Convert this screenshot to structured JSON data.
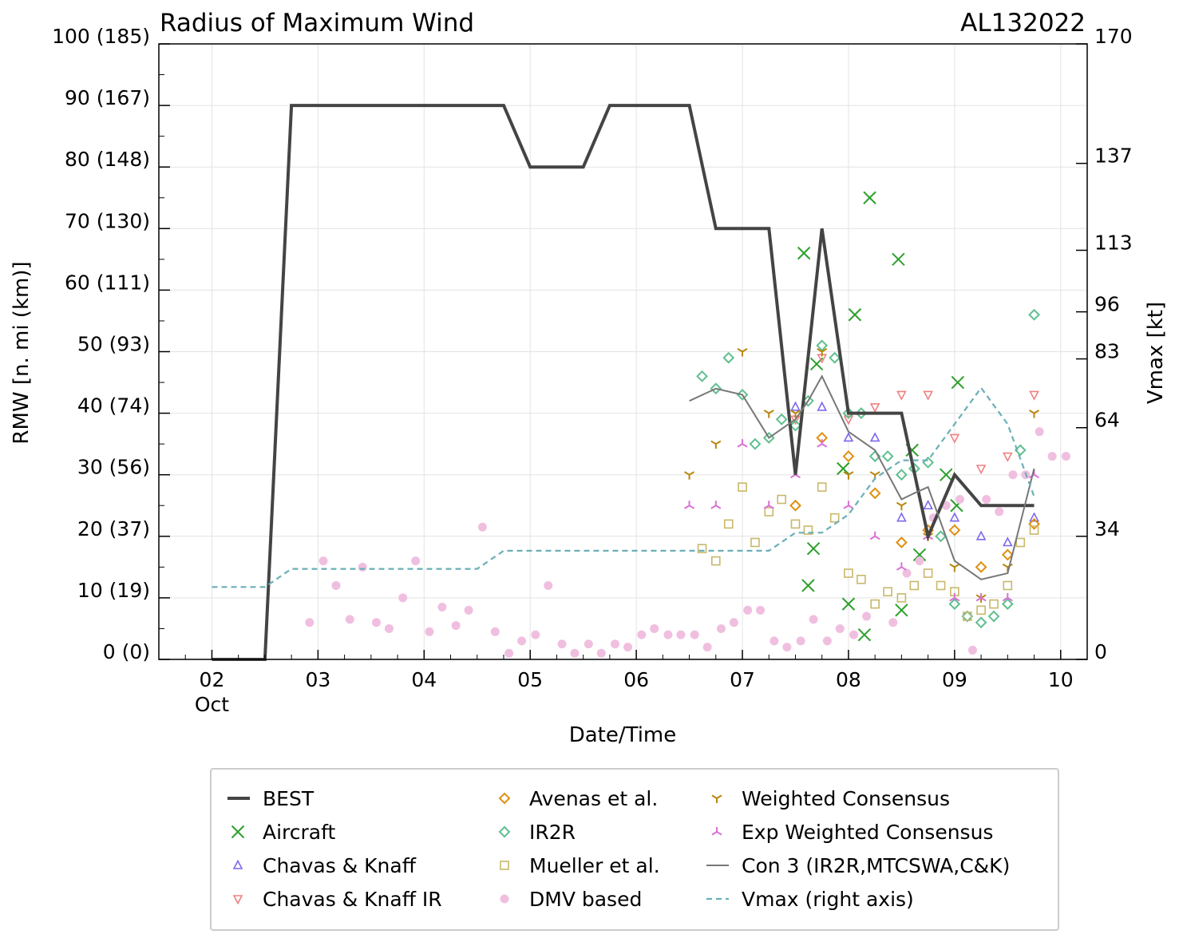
{
  "chart_data": {
    "type": "line",
    "title": "Radius of Maximum Wind",
    "storm_id": "AL132022",
    "xlabel": "Date/Time",
    "ylabel": "RMW [n. mi (km)]",
    "y2label": "Vmax [kt]",
    "xlim": [
      1.5,
      10.25
    ],
    "ylim": [
      0,
      100
    ],
    "y2lim": [
      0,
      170
    ],
    "x_ticks": [
      {
        "x": 2,
        "label": "02"
      },
      {
        "x": 3,
        "label": "03"
      },
      {
        "x": 4,
        "label": "04"
      },
      {
        "x": 5,
        "label": "05"
      },
      {
        "x": 6,
        "label": "06"
      },
      {
        "x": 7,
        "label": "07"
      },
      {
        "x": 8,
        "label": "08"
      },
      {
        "x": 9,
        "label": "09"
      },
      {
        "x": 10,
        "label": "10"
      }
    ],
    "x_month_label": "Oct",
    "y_ticks": [
      {
        "y": 0,
        "label": "0 (0)"
      },
      {
        "y": 10,
        "label": "10 (19)"
      },
      {
        "y": 20,
        "label": "20 (37)"
      },
      {
        "y": 30,
        "label": "30 (56)"
      },
      {
        "y": 40,
        "label": "40 (74)"
      },
      {
        "y": 50,
        "label": "50 (93)"
      },
      {
        "y": 60,
        "label": "60 (111)"
      },
      {
        "y": 70,
        "label": "70 (130)"
      },
      {
        "y": 80,
        "label": "80 (148)"
      },
      {
        "y": 90,
        "label": "90 (167)"
      },
      {
        "y": 100,
        "label": "100 (185)"
      }
    ],
    "y2_ticks": [
      {
        "v": 0,
        "label": "0"
      },
      {
        "v": 34,
        "label": "34"
      },
      {
        "v": 64,
        "label": "64"
      },
      {
        "v": 83,
        "label": "83"
      },
      {
        "v": 96,
        "label": "96"
      },
      {
        "v": 113,
        "label": "113"
      },
      {
        "v": 137,
        "label": "137"
      },
      {
        "v": 170,
        "label": "170"
      }
    ],
    "series": [
      {
        "name": "BEST",
        "kind": "line",
        "color": "#444444",
        "points": [
          [
            2,
            0
          ],
          [
            2.5,
            0
          ],
          [
            2.75,
            90
          ],
          [
            4.75,
            90
          ],
          [
            5,
            80
          ],
          [
            5.5,
            80
          ],
          [
            5.75,
            90
          ],
          [
            6.5,
            90
          ],
          [
            6.75,
            70
          ],
          [
            7.25,
            70
          ],
          [
            7.5,
            30
          ],
          [
            7.75,
            70
          ],
          [
            8,
            40
          ],
          [
            8.5,
            40
          ],
          [
            8.75,
            20
          ],
          [
            9,
            30
          ],
          [
            9.25,
            25
          ],
          [
            9.75,
            25
          ]
        ]
      },
      {
        "name": "Aircraft",
        "kind": "marker",
        "marker": "x",
        "color": "#2ca02c",
        "points": [
          [
            7.58,
            66
          ],
          [
            7.67,
            18
          ],
          [
            7.62,
            12
          ],
          [
            7.7,
            48
          ],
          [
            7.95,
            31
          ],
          [
            8.0,
            9
          ],
          [
            8.06,
            56
          ],
          [
            8.15,
            4
          ],
          [
            8.2,
            75
          ],
          [
            8.47,
            65
          ],
          [
            8.5,
            8
          ],
          [
            8.6,
            34
          ],
          [
            8.67,
            17
          ],
          [
            8.92,
            30
          ],
          [
            9.02,
            25
          ],
          [
            9.03,
            45
          ]
        ]
      },
      {
        "name": "Chavas & Knaff",
        "kind": "marker",
        "marker": "tri_up",
        "color": "#7b68ee",
        "points": [
          [
            7.5,
            41
          ],
          [
            7.75,
            41
          ],
          [
            8.0,
            36
          ],
          [
            8.25,
            36
          ],
          [
            8.5,
            23
          ],
          [
            8.75,
            25
          ],
          [
            9.0,
            23
          ],
          [
            9.25,
            20
          ],
          [
            9.5,
            19
          ],
          [
            9.75,
            23
          ]
        ]
      },
      {
        "name": "Chavas & Knaff IR",
        "kind": "marker",
        "marker": "tri_down",
        "color": "#f08080",
        "points": [
          [
            7.5,
            39
          ],
          [
            7.75,
            49
          ],
          [
            8.0,
            39
          ],
          [
            8.25,
            41
          ],
          [
            8.5,
            43
          ],
          [
            8.75,
            43
          ],
          [
            9.0,
            36
          ],
          [
            9.25,
            31
          ],
          [
            9.5,
            33
          ],
          [
            9.75,
            43
          ]
        ]
      },
      {
        "name": "Avenas et al.",
        "kind": "marker",
        "marker": "diamond",
        "color": "#e08f10",
        "points": [
          [
            7.5,
            25
          ],
          [
            7.75,
            36
          ],
          [
            8.0,
            33
          ],
          [
            8.25,
            27
          ],
          [
            8.5,
            19
          ],
          [
            8.75,
            21
          ],
          [
            9.0,
            21
          ],
          [
            9.25,
            15
          ],
          [
            9.5,
            17
          ],
          [
            9.75,
            22
          ]
        ]
      },
      {
        "name": "IR2R",
        "kind": "marker",
        "marker": "diamond",
        "color": "#5fbf8f",
        "points": [
          [
            6.62,
            46
          ],
          [
            6.75,
            44
          ],
          [
            6.87,
            49
          ],
          [
            7.0,
            43
          ],
          [
            7.12,
            35
          ],
          [
            7.25,
            36
          ],
          [
            7.37,
            39
          ],
          [
            7.5,
            38
          ],
          [
            7.62,
            42
          ],
          [
            7.75,
            51
          ],
          [
            7.87,
            49
          ],
          [
            8.0,
            40
          ],
          [
            8.12,
            40
          ],
          [
            8.25,
            33
          ],
          [
            8.37,
            33
          ],
          [
            8.5,
            30
          ],
          [
            8.62,
            31
          ],
          [
            8.75,
            32
          ],
          [
            8.87,
            20
          ],
          [
            9.0,
            9
          ],
          [
            9.12,
            7
          ],
          [
            9.25,
            6
          ],
          [
            9.37,
            7
          ],
          [
            9.5,
            9
          ],
          [
            9.62,
            34
          ],
          [
            9.75,
            56
          ]
        ]
      },
      {
        "name": "Mueller et al.",
        "kind": "marker",
        "marker": "square",
        "color": "#c8b86a",
        "points": [
          [
            6.62,
            18
          ],
          [
            6.75,
            16
          ],
          [
            6.87,
            22
          ],
          [
            7.0,
            28
          ],
          [
            7.12,
            19
          ],
          [
            7.25,
            24
          ],
          [
            7.37,
            26
          ],
          [
            7.5,
            22
          ],
          [
            7.62,
            21
          ],
          [
            7.75,
            28
          ],
          [
            7.87,
            23
          ],
          [
            8.0,
            14
          ],
          [
            8.12,
            13
          ],
          [
            8.25,
            9
          ],
          [
            8.37,
            11
          ],
          [
            8.5,
            10
          ],
          [
            8.62,
            12
          ],
          [
            8.75,
            14
          ],
          [
            8.87,
            12
          ],
          [
            9.0,
            11
          ],
          [
            9.12,
            7
          ],
          [
            9.25,
            8
          ],
          [
            9.37,
            9
          ],
          [
            9.5,
            12
          ],
          [
            9.62,
            19
          ],
          [
            9.75,
            21
          ]
        ]
      },
      {
        "name": "DMV based",
        "kind": "marker",
        "marker": "dot",
        "color": "#f0bfe0",
        "points": [
          [
            2.92,
            6
          ],
          [
            3.05,
            16
          ],
          [
            3.17,
            12
          ],
          [
            3.3,
            6.5
          ],
          [
            3.42,
            15
          ],
          [
            3.55,
            6
          ],
          [
            3.67,
            5
          ],
          [
            3.8,
            10
          ],
          [
            3.92,
            16
          ],
          [
            4.05,
            4.5
          ],
          [
            4.17,
            8.5
          ],
          [
            4.3,
            5.5
          ],
          [
            4.42,
            8
          ],
          [
            4.55,
            21.5
          ],
          [
            4.67,
            4.5
          ],
          [
            4.8,
            1
          ],
          [
            4.92,
            3
          ],
          [
            5.05,
            4
          ],
          [
            5.17,
            12
          ],
          [
            5.3,
            2.5
          ],
          [
            5.42,
            1
          ],
          [
            5.55,
            2.5
          ],
          [
            5.67,
            1
          ],
          [
            5.8,
            2.5
          ],
          [
            5.92,
            2
          ],
          [
            6.05,
            4
          ],
          [
            6.17,
            5
          ],
          [
            6.3,
            4
          ],
          [
            6.42,
            4
          ],
          [
            6.55,
            4
          ],
          [
            6.67,
            2
          ],
          [
            6.8,
            5
          ],
          [
            6.92,
            6
          ],
          [
            7.05,
            8
          ],
          [
            7.17,
            8
          ],
          [
            7.3,
            3
          ],
          [
            7.42,
            2
          ],
          [
            7.55,
            3
          ],
          [
            7.67,
            6.5
          ],
          [
            7.8,
            3
          ],
          [
            7.92,
            5
          ],
          [
            8.05,
            4
          ],
          [
            8.17,
            7
          ],
          [
            8.42,
            6
          ],
          [
            8.55,
            14
          ],
          [
            8.67,
            16
          ],
          [
            8.8,
            23
          ],
          [
            8.92,
            25
          ],
          [
            9.05,
            26
          ],
          [
            9.17,
            1.5
          ],
          [
            9.3,
            26
          ],
          [
            9.42,
            24
          ],
          [
            9.55,
            30
          ],
          [
            9.67,
            30
          ],
          [
            9.8,
            37
          ],
          [
            9.92,
            33
          ],
          [
            10.05,
            33
          ]
        ]
      },
      {
        "name": "Weighted Consensus",
        "kind": "marker",
        "marker": "tri_down_stroke",
        "color": "#b8860b",
        "points": [
          [
            6.5,
            30
          ],
          [
            6.75,
            35
          ],
          [
            7.0,
            50
          ],
          [
            7.25,
            40
          ],
          [
            7.5,
            40
          ],
          [
            7.75,
            50
          ],
          [
            8.0,
            30
          ],
          [
            8.25,
            30
          ],
          [
            8.5,
            25
          ],
          [
            8.75,
            20
          ],
          [
            9.0,
            15
          ],
          [
            9.25,
            10
          ],
          [
            9.5,
            15
          ],
          [
            9.75,
            40
          ]
        ]
      },
      {
        "name": "Exp Weighted Consensus",
        "kind": "marker",
        "marker": "tri_up_stroke",
        "color": "#da70d6",
        "points": [
          [
            6.5,
            25
          ],
          [
            6.75,
            25
          ],
          [
            7.0,
            35
          ],
          [
            7.25,
            25
          ],
          [
            7.5,
            30
          ],
          [
            7.75,
            35
          ],
          [
            8.0,
            25
          ],
          [
            8.25,
            20
          ],
          [
            8.5,
            15
          ],
          [
            8.75,
            20
          ],
          [
            9.0,
            10
          ],
          [
            9.25,
            10
          ],
          [
            9.5,
            10
          ],
          [
            9.75,
            30
          ]
        ]
      },
      {
        "name": "Con 3 (IR2R,MTCSWA,C&K)",
        "kind": "line",
        "color": "#777777",
        "points": [
          [
            6.5,
            42
          ],
          [
            6.75,
            44
          ],
          [
            7.0,
            43
          ],
          [
            7.25,
            36
          ],
          [
            7.5,
            39
          ],
          [
            7.62,
            42
          ],
          [
            7.75,
            46
          ],
          [
            8.0,
            37
          ],
          [
            8.25,
            34
          ],
          [
            8.5,
            26
          ],
          [
            8.62,
            27
          ],
          [
            8.75,
            28
          ],
          [
            9.0,
            16
          ],
          [
            9.25,
            13
          ],
          [
            9.5,
            14
          ],
          [
            9.75,
            31
          ]
        ]
      },
      {
        "name": "Vmax (right axis)",
        "kind": "vmax",
        "color": "#6aafb8",
        "points": [
          [
            2,
            20
          ],
          [
            2.5,
            20
          ],
          [
            2.75,
            25
          ],
          [
            4.5,
            25
          ],
          [
            4.75,
            30
          ],
          [
            7.25,
            30
          ],
          [
            7.5,
            35
          ],
          [
            7.75,
            35
          ],
          [
            8.0,
            40
          ],
          [
            8.25,
            50
          ],
          [
            8.5,
            55
          ],
          [
            8.75,
            55
          ],
          [
            9.0,
            65
          ],
          [
            9.25,
            75
          ],
          [
            9.5,
            65
          ],
          [
            9.75,
            45
          ]
        ]
      }
    ],
    "legend_position": "bottom"
  }
}
